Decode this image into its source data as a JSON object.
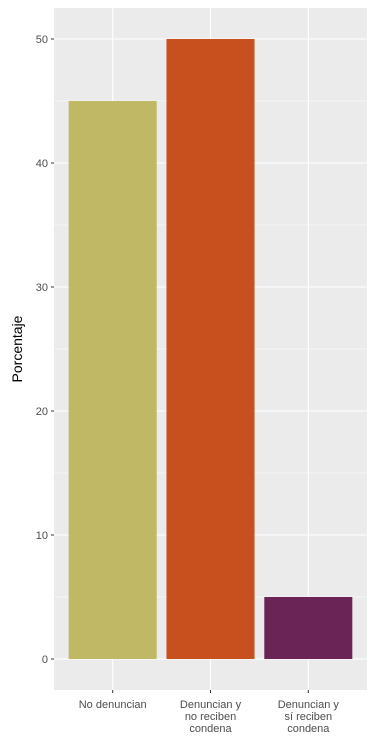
{
  "chart_data": {
    "type": "bar",
    "title": "",
    "xlabel": "",
    "ylabel": "Porcentaje",
    "categories": [
      [
        "No denuncian"
      ],
      [
        "Denuncian y",
        "no reciben",
        "condena"
      ],
      [
        "Denuncian y",
        "sí reciben",
        "condena"
      ]
    ],
    "values": [
      45,
      50,
      5
    ],
    "colors": [
      "#c0b865",
      "#c8501e",
      "#6a2556"
    ],
    "ylim": [
      -2.5,
      52.5
    ],
    "yticks": [
      0,
      10,
      20,
      30,
      40,
      50
    ],
    "panel_background": "#ebebeb",
    "grid": true,
    "grid_color": "#ffffff",
    "legend": "none"
  }
}
